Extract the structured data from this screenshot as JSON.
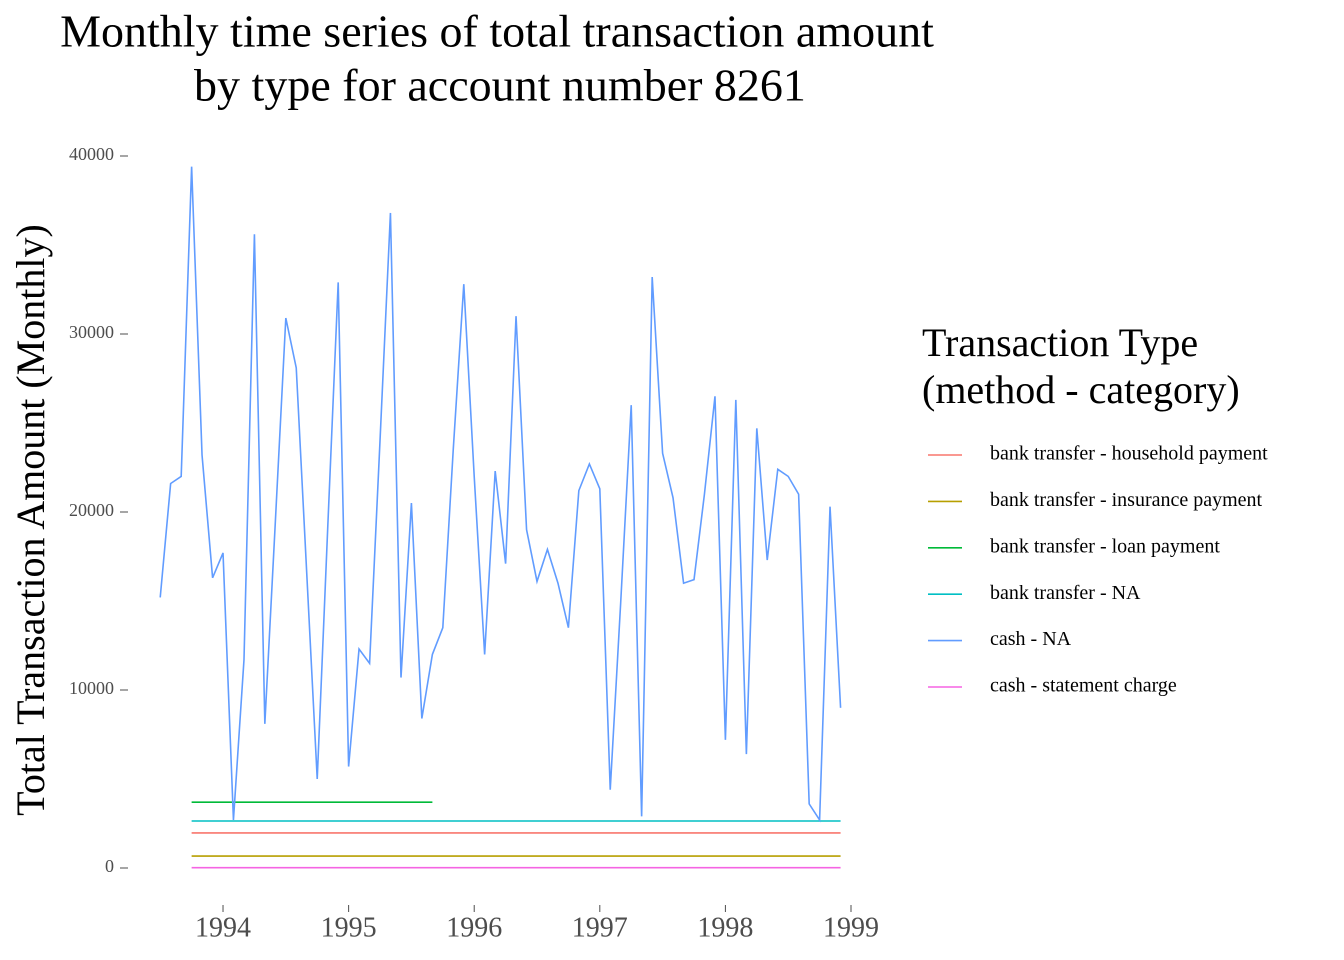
{
  "chart_data": {
    "type": "line",
    "title": [
      "Monthly time series of total transaction amount",
      "by type for account number 8261"
    ],
    "y_label": "Total Transaction Amount (Monthly)",
    "legend_title": [
      "Transaction Type",
      "(method - category)"
    ],
    "legend_position": "right",
    "grid": false,
    "xlim": [
      1993.3,
      1999.25
    ],
    "xticks": [
      1994,
      1995,
      1996,
      1997,
      1998,
      1999
    ],
    "ylim": [
      -2000,
      41000
    ],
    "yticks": [
      0,
      10000,
      20000,
      30000,
      40000
    ],
    "series": [
      {
        "name": "bank transfer - household payment",
        "color": "#F8766D",
        "x": [
          1993.75,
          1998.917
        ],
        "values": [
          1970,
          1970
        ]
      },
      {
        "name": "bank transfer - insurance payment",
        "color": "#B79F00",
        "x": [
          1993.75,
          1998.917
        ],
        "values": [
          670,
          670
        ]
      },
      {
        "name": "bank transfer - loan payment",
        "color": "#00BA38",
        "x": [
          1993.75,
          1995.667
        ],
        "values": [
          3700,
          3700
        ]
      },
      {
        "name": "bank transfer - NA",
        "color": "#00BFC4",
        "x": [
          1993.75,
          1998.917
        ],
        "values": [
          2640,
          2640
        ]
      },
      {
        "name": "cash - NA",
        "color": "#619CFF",
        "x": [
          1993.5,
          1993.583,
          1993.667,
          1993.75,
          1993.833,
          1993.917,
          1994.0,
          1994.083,
          1994.167,
          1994.25,
          1994.333,
          1994.417,
          1994.5,
          1994.583,
          1994.667,
          1994.75,
          1994.833,
          1994.917,
          1995.0,
          1995.083,
          1995.167,
          1995.25,
          1995.333,
          1995.417,
          1995.5,
          1995.583,
          1995.667,
          1995.75,
          1995.833,
          1995.917,
          1996.0,
          1996.083,
          1996.167,
          1996.25,
          1996.333,
          1996.417,
          1996.5,
          1996.583,
          1996.667,
          1996.75,
          1996.833,
          1996.917,
          1997.0,
          1997.083,
          1997.167,
          1997.25,
          1997.333,
          1997.417,
          1997.5,
          1997.583,
          1997.667,
          1997.75,
          1997.833,
          1997.917,
          1998.0,
          1998.083,
          1998.167,
          1998.25,
          1998.333,
          1998.417,
          1998.5,
          1998.583,
          1998.667,
          1998.75,
          1998.833,
          1998.917
        ],
        "values": [
          15200,
          21600,
          22000,
          39400,
          23200,
          16300,
          17700,
          2700,
          11700,
          35600,
          8100,
          19500,
          30900,
          28100,
          16500,
          5000,
          19000,
          32900,
          5700,
          12300,
          11500,
          24000,
          36800,
          10700,
          20500,
          8400,
          12000,
          13500,
          23500,
          32800,
          22000,
          12000,
          22300,
          17100,
          31000,
          19000,
          16100,
          17900,
          16000,
          13500,
          21200,
          22700,
          21300,
          4400,
          15000,
          26000,
          2900,
          33200,
          23300,
          20800,
          16000,
          16200,
          21000,
          26500,
          7200,
          26300,
          6400,
          24700,
          17300,
          22400,
          22000,
          21000,
          3600,
          2700,
          20300,
          9000
        ]
      },
      {
        "name": "cash - statement charge",
        "color": "#F564E3",
        "x": [
          1993.75,
          1998.917
        ],
        "values": [
          15,
          15
        ]
      }
    ]
  }
}
